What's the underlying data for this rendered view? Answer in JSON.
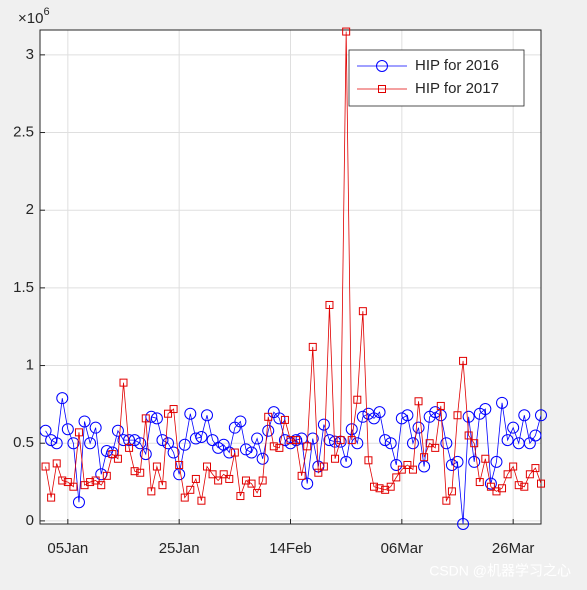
{
  "chart_data": {
    "type": "line",
    "y_multiplier": {
      "base": "×10",
      "exponent": "6"
    },
    "x": [
      1,
      2,
      3,
      4,
      5,
      6,
      7,
      8,
      9,
      10,
      11,
      12,
      13,
      14,
      15,
      16,
      17,
      18,
      19,
      20,
      21,
      22,
      23,
      24,
      25,
      26,
      27,
      28,
      29,
      30,
      31,
      32,
      33,
      34,
      35,
      36,
      37,
      38,
      39,
      40,
      41,
      42,
      43,
      44,
      45,
      46,
      47,
      48,
      49,
      50,
      51,
      52,
      53,
      54,
      55,
      56,
      57,
      58,
      59,
      60,
      61,
      62,
      63,
      64,
      65,
      66,
      67,
      68,
      69,
      70,
      71,
      72,
      73,
      74,
      75,
      76,
      77,
      78,
      79,
      80,
      81,
      82,
      83,
      84,
      85,
      86,
      87,
      88,
      89,
      90
    ],
    "series": [
      {
        "name": "HIP for 2016",
        "color": "#0000ff",
        "marker": "circle",
        "values": [
          0.58,
          0.52,
          0.5,
          0.79,
          0.59,
          0.5,
          0.12,
          0.64,
          0.5,
          0.6,
          0.3,
          0.45,
          0.44,
          0.58,
          0.52,
          0.52,
          0.52,
          0.5,
          0.43,
          0.67,
          0.66,
          0.52,
          0.5,
          0.44,
          0.3,
          0.49,
          0.69,
          0.53,
          0.54,
          0.68,
          0.52,
          0.47,
          0.49,
          0.44,
          0.6,
          0.64,
          0.46,
          0.44,
          0.53,
          0.4,
          0.58,
          0.7,
          0.66,
          0.52,
          0.5,
          0.52,
          0.53,
          0.24,
          0.53,
          0.35,
          0.62,
          0.52,
          0.51,
          0.51,
          0.38,
          0.59,
          0.5,
          0.67,
          0.69,
          0.66,
          0.7,
          0.52,
          0.5,
          0.36,
          0.66,
          0.68,
          0.5,
          0.6,
          0.35,
          0.67,
          0.7,
          0.68,
          0.5,
          0.36,
          0.38,
          -0.02,
          0.67,
          0.38,
          0.69,
          0.72,
          0.24,
          0.38,
          0.76,
          0.52,
          0.6,
          0.5,
          0.68,
          0.5,
          0.55,
          0.68
        ]
      },
      {
        "name": "HIP for 2017",
        "color": "#e00000",
        "marker": "square",
        "values": [
          0.35,
          0.15,
          0.37,
          0.26,
          0.25,
          0.22,
          0.57,
          0.23,
          0.25,
          0.26,
          0.23,
          0.29,
          0.43,
          0.4,
          0.89,
          0.47,
          0.32,
          0.31,
          0.66,
          0.19,
          0.35,
          0.23,
          0.69,
          0.72,
          0.36,
          0.15,
          0.2,
          0.27,
          0.13,
          0.35,
          0.3,
          0.26,
          0.3,
          0.27,
          0.44,
          0.16,
          0.26,
          0.24,
          0.18,
          0.26,
          0.67,
          0.48,
          0.47,
          0.65,
          0.52,
          0.52,
          0.29,
          0.48,
          1.12,
          0.31,
          0.35,
          1.39,
          0.4,
          0.52,
          3.15,
          0.52,
          0.78,
          1.35,
          0.39,
          0.22,
          0.21,
          0.2,
          0.22,
          0.28,
          0.33,
          0.36,
          0.33,
          0.77,
          0.41,
          0.5,
          0.47,
          0.74,
          0.13,
          0.19,
          0.68,
          1.03,
          0.55,
          0.5,
          0.25,
          0.4,
          0.22,
          0.19,
          0.21,
          0.3,
          0.35,
          0.23,
          0.22,
          0.3,
          0.34,
          0.24
        ]
      }
    ],
    "xlim": [
      0,
      90
    ],
    "xticks": [
      {
        "value": 5,
        "label": "05Jan"
      },
      {
        "value": 25,
        "label": "25Jan"
      },
      {
        "value": 45,
        "label": "14Feb"
      },
      {
        "value": 65,
        "label": "06Mar"
      },
      {
        "value": 85,
        "label": "26Mar"
      }
    ],
    "ylim": [
      -0.02,
      3.16
    ],
    "yticks": [
      0,
      0.5,
      1,
      1.5,
      2,
      2.5,
      3
    ],
    "grid": true,
    "legend": "northeast"
  },
  "watermark": "CSDN @机器学习之心"
}
